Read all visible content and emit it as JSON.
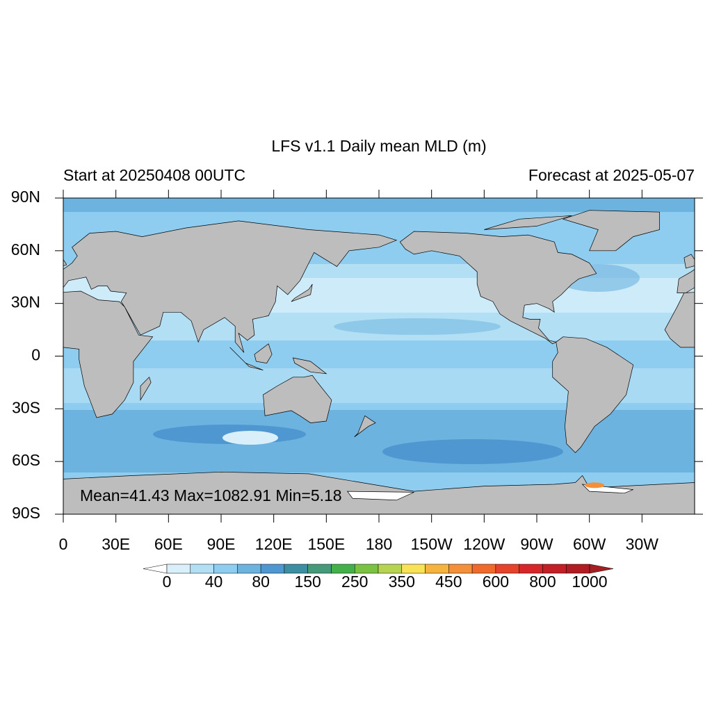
{
  "map": {
    "title": "LFS v1.1 Daily mean MLD (m)",
    "left_subtitle": "Start at 20250408 00UTC",
    "right_subtitle": "Forecast at 2025-05-07",
    "x_labels": [
      "0",
      "30E",
      "60E",
      "90E",
      "120E",
      "150E",
      "180",
      "150W",
      "120W",
      "90W",
      "60W",
      "30W"
    ],
    "y_labels": [
      "90N",
      "60N",
      "30N",
      "0",
      "30S",
      "60S",
      "90S"
    ],
    "annotation": "Mean=41.43  Max=1082.91  Min=5.18",
    "land_color": "#bdbdbd",
    "colorbar": {
      "under_color": "#ffffff",
      "over_color": "#a41f22",
      "colors": [
        "#d9eff9",
        "#b3dff5",
        "#8ecdf0",
        "#6cb3e0",
        "#4f97d1",
        "#3c8fa0",
        "#459a7a",
        "#44b04a",
        "#7cc242",
        "#b6d452",
        "#f8e255",
        "#f6b43e",
        "#f5903a",
        "#ef6a2c",
        "#e5432a",
        "#d7262a",
        "#c21f27",
        "#b01c22"
      ],
      "labels": [
        0,
        40,
        80,
        150,
        250,
        350,
        450,
        600,
        800,
        1000
      ]
    }
  }
}
